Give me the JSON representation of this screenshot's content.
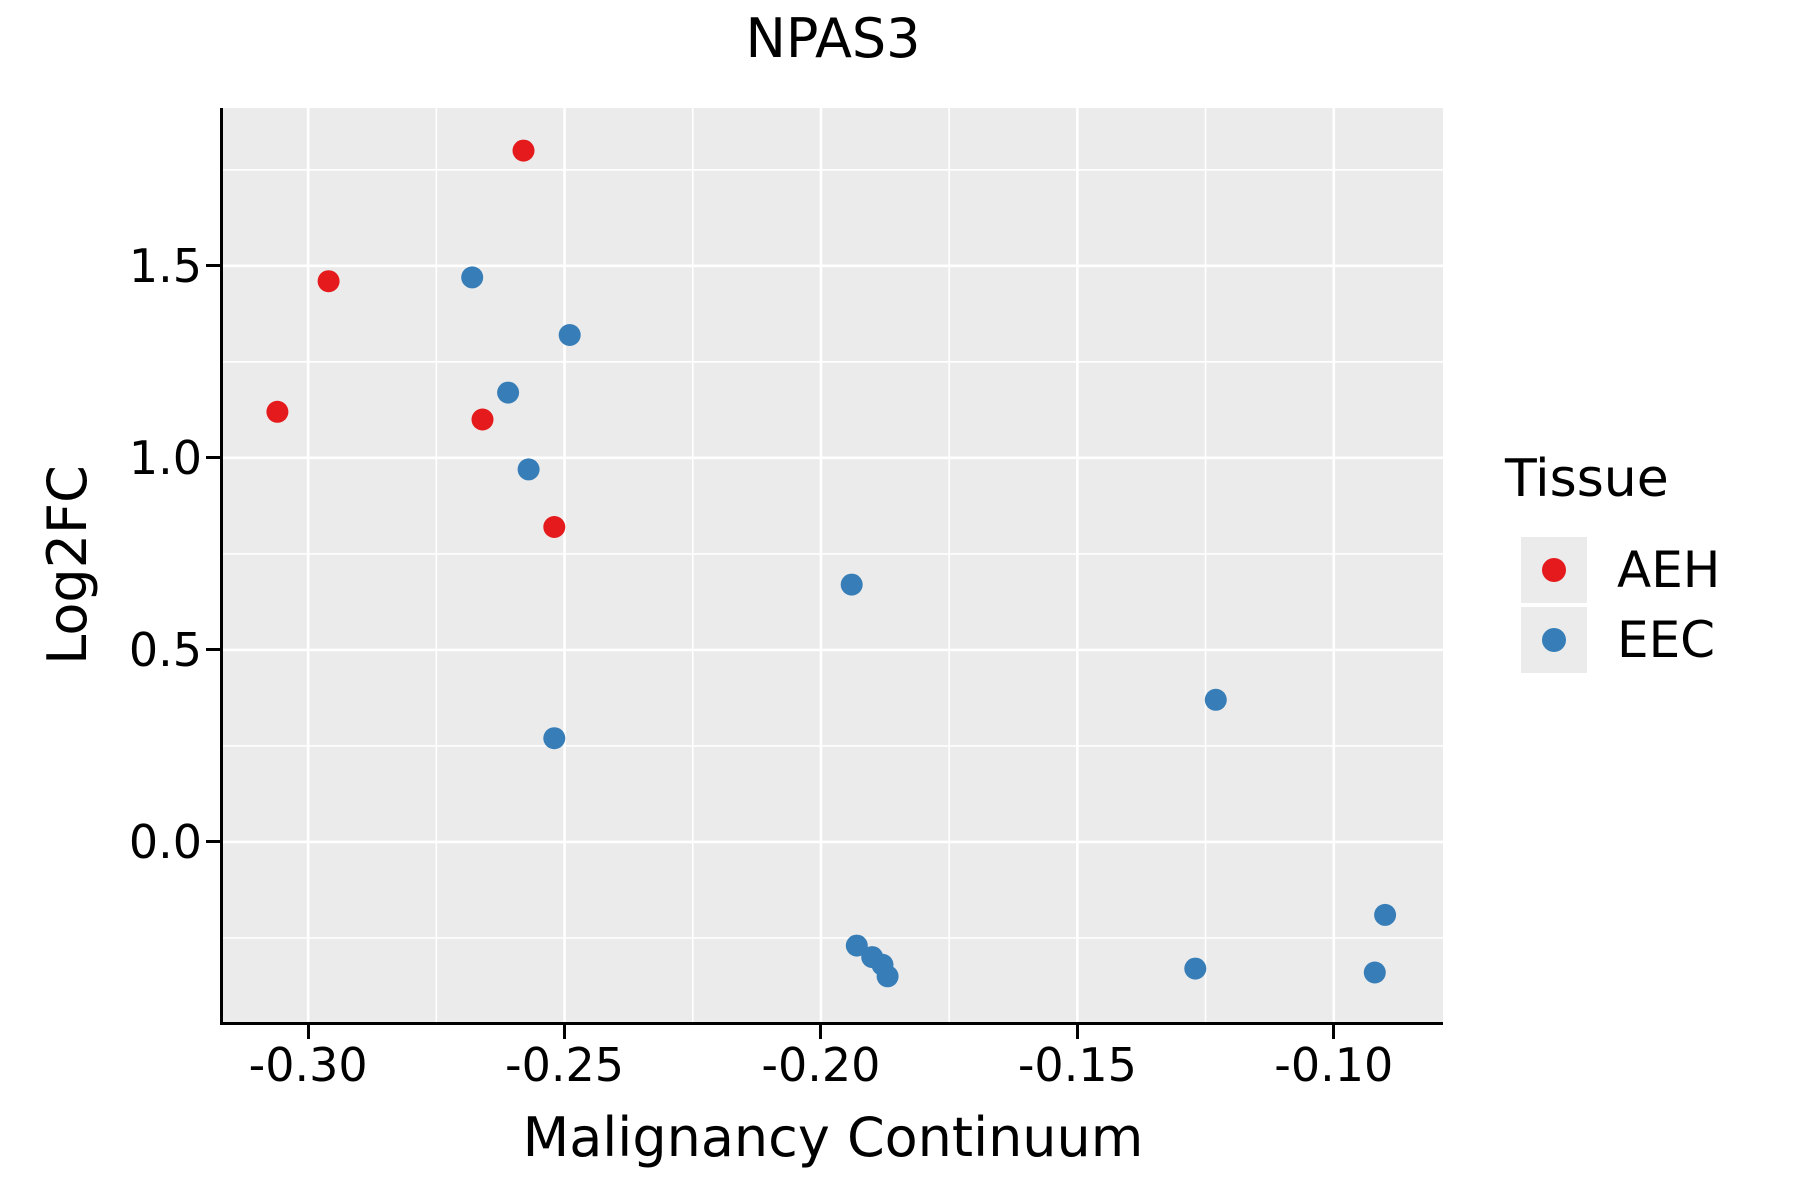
{
  "title": "NPAS3",
  "axes": {
    "x": {
      "label": "Malignancy Continuum",
      "tick_labels": [
        "-0.30",
        "-0.25",
        "-0.20",
        "-0.15",
        "-0.10"
      ],
      "tick_values": [
        -0.3,
        -0.25,
        -0.2,
        -0.15,
        -0.1
      ],
      "minor_values": [
        -0.275,
        -0.225,
        -0.175,
        -0.125
      ],
      "range": [
        -0.3166,
        -0.0787
      ]
    },
    "y": {
      "label": "Log2FC",
      "tick_labels": [
        "0.0",
        "0.5",
        "1.0",
        "1.5"
      ],
      "tick_values": [
        0.0,
        0.5,
        1.0,
        1.5
      ],
      "minor_values": [
        -0.25,
        0.25,
        0.75,
        1.25,
        1.75
      ],
      "range": [
        -0.469,
        1.911
      ]
    }
  },
  "legend": {
    "title": "Tissue",
    "items": [
      {
        "label": "AEH",
        "color": "#E41A1C"
      },
      {
        "label": "EEC",
        "color": "#377EB8"
      }
    ]
  },
  "colors": {
    "panel_background": "#EBEBEB",
    "gridline": "#FFFFFF",
    "spine": "#000000",
    "aeh_red": "#E41A1C",
    "eec_blue": "#377EB8"
  },
  "chart_data": {
    "type": "scatter",
    "title": "NPAS3",
    "xlabel": "Malignancy Continuum",
    "ylabel": "Log2FC",
    "xlim": [
      -0.3166,
      -0.0787
    ],
    "ylim": [
      -0.469,
      1.911
    ],
    "grid": "on",
    "legend_position": "right",
    "series": [
      {
        "name": "AEH",
        "color": "#E41A1C",
        "points": [
          [
            -0.306,
            1.12
          ],
          [
            -0.296,
            1.46
          ],
          [
            -0.266,
            1.1
          ],
          [
            -0.258,
            1.8
          ],
          [
            -0.252,
            0.82
          ]
        ]
      },
      {
        "name": "EEC",
        "color": "#377EB8",
        "points": [
          [
            -0.268,
            1.47
          ],
          [
            -0.261,
            1.17
          ],
          [
            -0.257,
            0.97
          ],
          [
            -0.252,
            0.27
          ],
          [
            -0.249,
            1.32
          ],
          [
            -0.194,
            0.67
          ],
          [
            -0.193,
            -0.27
          ],
          [
            -0.19,
            -0.3
          ],
          [
            -0.188,
            -0.32
          ],
          [
            -0.187,
            -0.35
          ],
          [
            -0.127,
            -0.33
          ],
          [
            -0.123,
            0.37
          ],
          [
            -0.092,
            -0.34
          ],
          [
            -0.09,
            -0.19
          ]
        ]
      }
    ]
  }
}
